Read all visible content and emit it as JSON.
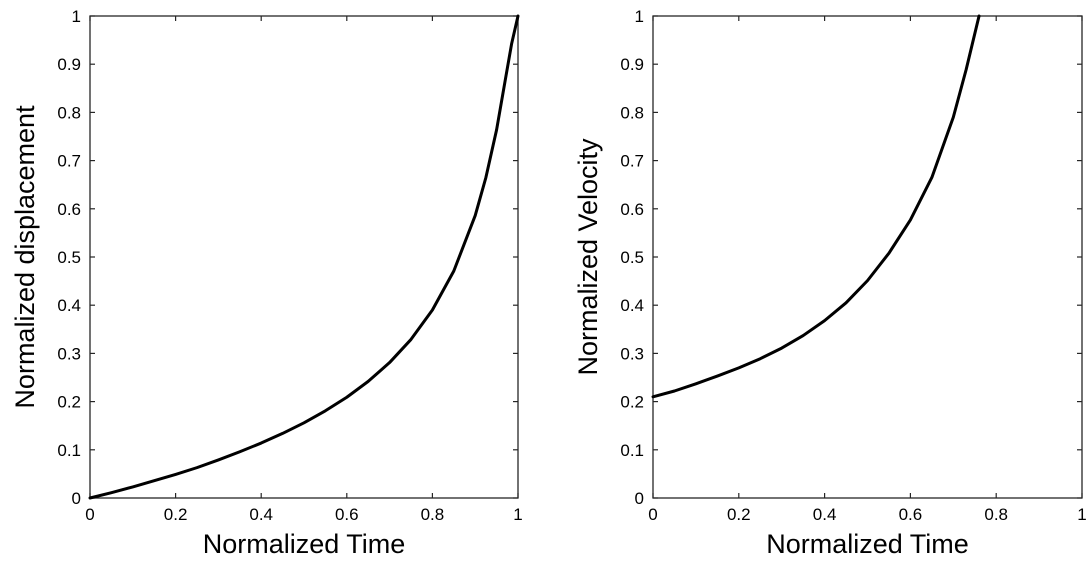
{
  "chart_data": [
    {
      "type": "line",
      "xlabel": "Normalized Time",
      "ylabel": "Normalized displacement",
      "xlim": [
        0,
        1
      ],
      "ylim": [
        0,
        1
      ],
      "xticks": [
        0,
        0.2,
        0.4,
        0.6,
        0.8,
        1
      ],
      "yticks": [
        0,
        0.1,
        0.2,
        0.3,
        0.4,
        0.5,
        0.6,
        0.7,
        0.8,
        0.9,
        1
      ],
      "xtick_labels": [
        "0",
        "0.2",
        "0.4",
        "0.6",
        "0.8",
        "1"
      ],
      "ytick_labels": [
        "0",
        "0.1",
        "0.2",
        "0.3",
        "0.4",
        "0.5",
        "0.6",
        "0.7",
        "0.8",
        "0.9",
        "1"
      ],
      "grid": false,
      "line_color": "#000000",
      "series": [
        {
          "x": [
            0,
            0.05,
            0.1,
            0.15,
            0.2,
            0.25,
            0.3,
            0.35,
            0.4,
            0.45,
            0.5,
            0.55,
            0.6,
            0.65,
            0.7,
            0.75,
            0.8,
            0.85,
            0.9,
            0.925,
            0.95,
            0.97,
            0.985,
            1
          ],
          "y": [
            0,
            0.011,
            0.023,
            0.036,
            0.049,
            0.063,
            0.079,
            0.096,
            0.114,
            0.134,
            0.156,
            0.181,
            0.209,
            0.242,
            0.281,
            0.329,
            0.39,
            0.471,
            0.586,
            0.665,
            0.764,
            0.866,
            0.942,
            1
          ]
        }
      ]
    },
    {
      "type": "line",
      "xlabel": "Normalized Time",
      "ylabel": "Normalized Velocity",
      "xlim": [
        0,
        1
      ],
      "ylim": [
        0,
        1
      ],
      "xticks": [
        0,
        0.2,
        0.4,
        0.6,
        0.8,
        1
      ],
      "yticks": [
        0,
        0.1,
        0.2,
        0.3,
        0.4,
        0.5,
        0.6,
        0.7,
        0.8,
        0.9,
        1
      ],
      "xtick_labels": [
        "0",
        "0.2",
        "0.4",
        "0.6",
        "0.8",
        "1"
      ],
      "ytick_labels": [
        "0",
        "0.1",
        "0.2",
        "0.3",
        "0.4",
        "0.5",
        "0.6",
        "0.7",
        "0.8",
        "0.9",
        "1"
      ],
      "grid": false,
      "line_color": "#000000",
      "series": [
        {
          "x": [
            0,
            0.05,
            0.1,
            0.15,
            0.2,
            0.25,
            0.3,
            0.35,
            0.4,
            0.45,
            0.5,
            0.55,
            0.6,
            0.65,
            0.7,
            0.73,
            0.76
          ],
          "y": [
            0.21,
            0.222,
            0.237,
            0.253,
            0.27,
            0.289,
            0.311,
            0.337,
            0.368,
            0.405,
            0.451,
            0.508,
            0.577,
            0.665,
            0.79,
            0.889,
            1
          ]
        }
      ]
    }
  ]
}
